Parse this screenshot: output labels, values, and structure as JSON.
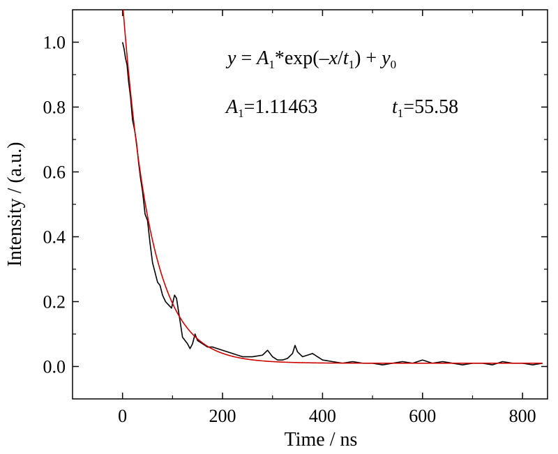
{
  "chart_data": {
    "type": "line",
    "xlabel": "Time / ns",
    "ylabel": "Intensity / (a.u.)",
    "xlim": [
      -100,
      850
    ],
    "ylim": [
      -0.1,
      1.1
    ],
    "x_ticks": [
      0,
      200,
      400,
      600,
      800
    ],
    "x_tick_labels": [
      "0",
      "200",
      "400",
      "600",
      "800"
    ],
    "y_ticks": [
      0.0,
      0.2,
      0.4,
      0.6,
      0.8,
      1.0
    ],
    "y_tick_labels": [
      "0.0",
      "0.2",
      "0.4",
      "0.6",
      "0.8",
      "1.0"
    ],
    "x_minor_step": 100,
    "y_minor_step": 0.1,
    "grid": false,
    "annotations": {
      "equation": {
        "y": "y",
        "eq": " = ",
        "A": "A",
        "A_sub": "1",
        "exp_open": "*exp(–",
        "x": "x",
        "slash": "/",
        "t": "t",
        "t_sub": "1",
        "plus": ") + ",
        "y0": "y",
        "y0_sub": "0"
      },
      "param_A": {
        "A": "A",
        "A_sub": "1",
        "value": "=1.11463"
      },
      "param_t": {
        "t": "t",
        "t_sub": "1",
        "value": "=55.58"
      }
    },
    "series": [
      {
        "color": "#000000",
        "x": [
          0,
          3,
          6,
          9,
          12,
          16,
          20,
          24,
          28,
          32,
          36,
          40,
          45,
          50,
          55,
          60,
          65,
          70,
          75,
          80,
          86,
          92,
          98,
          104,
          108,
          112,
          116,
          120,
          125,
          130,
          135,
          140,
          145,
          150,
          160,
          170,
          180,
          200,
          220,
          240,
          260,
          280,
          290,
          300,
          310,
          320,
          330,
          340,
          345,
          350,
          360,
          370,
          380,
          390,
          400,
          420,
          440,
          460,
          480,
          500,
          520,
          540,
          560,
          580,
          600,
          620,
          640,
          660,
          680,
          700,
          720,
          740,
          760,
          780,
          800,
          820,
          840
        ],
        "y": [
          1.0,
          0.98,
          0.95,
          0.93,
          0.88,
          0.83,
          0.76,
          0.73,
          0.69,
          0.63,
          0.58,
          0.54,
          0.47,
          0.45,
          0.38,
          0.32,
          0.29,
          0.26,
          0.25,
          0.22,
          0.2,
          0.19,
          0.18,
          0.22,
          0.21,
          0.17,
          0.13,
          0.09,
          0.08,
          0.07,
          0.055,
          0.07,
          0.1,
          0.08,
          0.07,
          0.06,
          0.06,
          0.05,
          0.04,
          0.03,
          0.03,
          0.035,
          0.05,
          0.03,
          0.02,
          0.02,
          0.025,
          0.04,
          0.065,
          0.045,
          0.03,
          0.035,
          0.04,
          0.03,
          0.02,
          0.015,
          0.01,
          0.015,
          0.01,
          0.01,
          0.005,
          0.01,
          0.015,
          0.01,
          0.02,
          0.01,
          0.015,
          0.01,
          0.005,
          0.01,
          0.01,
          0.005,
          0.015,
          0.01,
          0.01,
          0.005,
          0.01
        ]
      },
      {
        "color": "#cc0000",
        "fit": {
          "A1": 1.11463,
          "t1": 55.58,
          "y0": 0.01,
          "x_start": 0,
          "x_end": 840
        }
      }
    ]
  }
}
